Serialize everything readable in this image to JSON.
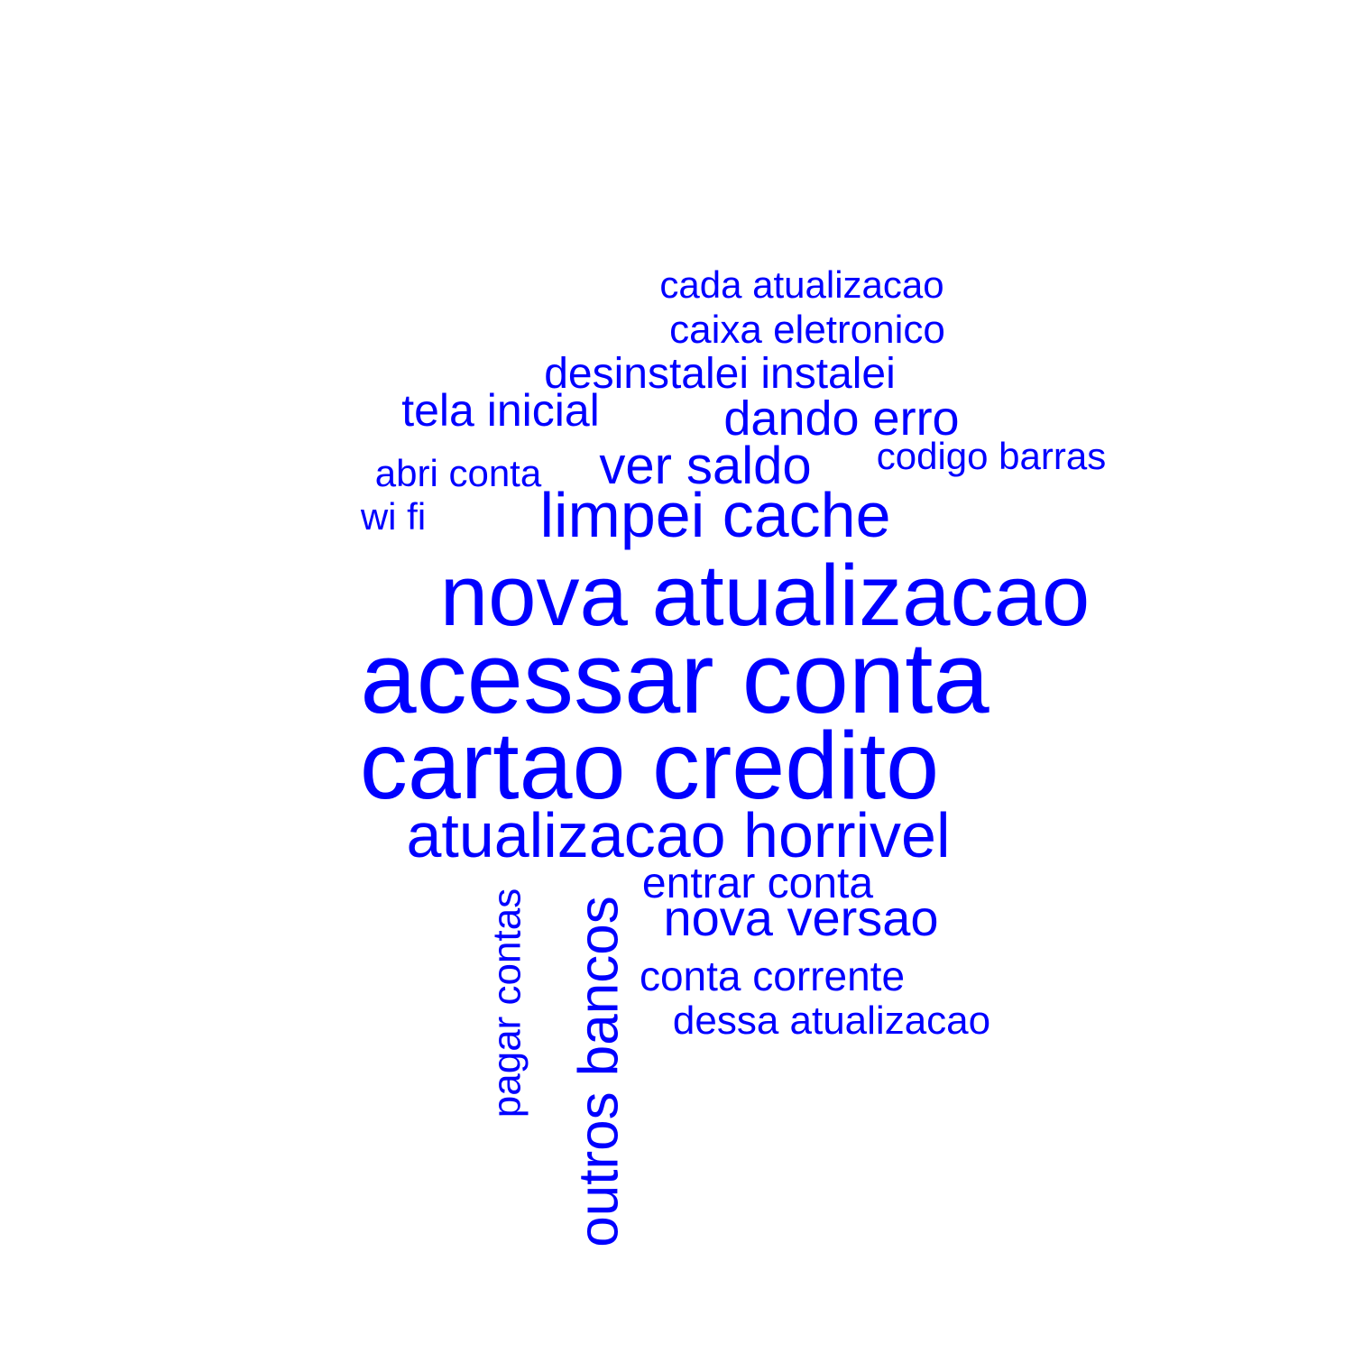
{
  "wordcloud": {
    "color": "#0000ff",
    "background": "#ffffff",
    "words": [
      {
        "text": "acessar conta",
        "rotated": false
      },
      {
        "text": "cartao credito",
        "rotated": false
      },
      {
        "text": "nova atualizacao",
        "rotated": false
      },
      {
        "text": "atualizacao horrivel",
        "rotated": false
      },
      {
        "text": "limpei cache",
        "rotated": false
      },
      {
        "text": "outros bancos",
        "rotated": true
      },
      {
        "text": "nova versao",
        "rotated": false
      },
      {
        "text": "dando erro",
        "rotated": false
      },
      {
        "text": "ver saldo",
        "rotated": false
      },
      {
        "text": "desinstalei instalei",
        "rotated": false
      },
      {
        "text": "tela inicial",
        "rotated": false
      },
      {
        "text": "entrar conta",
        "rotated": false
      },
      {
        "text": "conta corrente",
        "rotated": false
      },
      {
        "text": "caixa eletronico",
        "rotated": false
      },
      {
        "text": "pagar contas",
        "rotated": true
      },
      {
        "text": "dessa atualizacao",
        "rotated": false
      },
      {
        "text": "codigo barras",
        "rotated": false
      },
      {
        "text": "cada atualizacao",
        "rotated": false
      },
      {
        "text": "abri conta",
        "rotated": false
      },
      {
        "text": "wi fi",
        "rotated": false
      }
    ]
  }
}
